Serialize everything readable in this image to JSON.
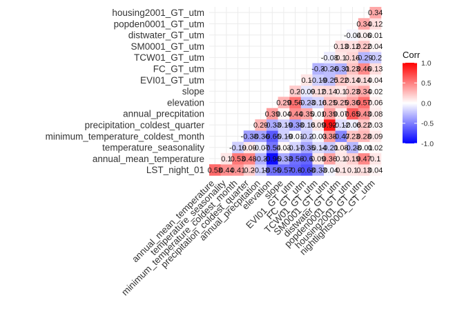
{
  "chart_data": {
    "type": "heatmap",
    "title": "",
    "xlabel": "",
    "ylabel": "",
    "variables": [
      "LST_night_01",
      "annual_mean_temperature",
      "temperature_seasonality",
      "minimum_temperature_coldest_month",
      "precipitation_coldest_quarter",
      "annual_precpitation",
      "elevation",
      "slope",
      "EVI01_GT_utm",
      "FC_GT_utm",
      "TCW01_GT_utm",
      "SM0001_GT_utm",
      "distwater_GT_utm",
      "popden0001_GT_utm",
      "housing2001_GT_utm",
      "nightlights0001_GT_utm"
    ],
    "x_labels": [
      "annual_mean_temperature",
      "temperature_seasonality",
      "minimum_temperature_coldest_month",
      "precipitation_coldest_quarter",
      "annual_precpitation",
      "elevation",
      "slope",
      "EVI01_GT_utm",
      "FC_GT_utm",
      "TCW01_GT_utm",
      "SM0001_GT_utm",
      "distwater_GT_utm",
      "popden0001_GT_utm",
      "housing2001_GT_utm",
      "nightlights0001_GT_utm"
    ],
    "y_labels": [
      "LST_night_01",
      "annual_mean_temperature",
      "temperature_seasonality",
      "minimum_temperature_coldest_month",
      "precipitation_coldest_quarter",
      "annual_precpitation",
      "elevation",
      "slope",
      "EVI01_GT_utm",
      "FC_GT_utm",
      "TCW01_GT_utm",
      "SM0001_GT_utm",
      "distwater_GT_utm",
      "popden0001_GT_utm",
      "housing2001_GT_utm"
    ],
    "rows": [
      [
        0.58,
        0.44,
        0.41,
        0.2,
        -0.18,
        -0.55,
        -0.57,
        -0.6,
        -0.68,
        -0.33,
        -0.04,
        0.1,
        0.1,
        0.13,
        0.04
      ],
      [
        null,
        0.1,
        0.53,
        0.48,
        -0.3,
        -0.95,
        -0.33,
        -0.56,
        -0.6,
        0.09,
        0.36,
        0.1,
        0.19,
        0.47,
        0.1
      ],
      [
        null,
        null,
        -0.19,
        0.09,
        -0.07,
        -0.54,
        0.03,
        -0.17,
        -0.35,
        -0.14,
        -0.21,
        0.08,
        -0.28,
        -0.01,
        0.02
      ],
      [
        null,
        null,
        null,
        -0.38,
        -0.36,
        -0.65,
        -0.19,
        -0.01,
        -0.2,
        -0.03,
        0.38,
        -0.47,
        0.23,
        0.28,
        0.09
      ],
      [
        null,
        null,
        null,
        null,
        0.29,
        -0.33,
        -0.19,
        -0.38,
        -0.16,
        0.09,
        0.92,
        -0.12,
        -0.06,
        0.22,
        0.03
      ],
      [
        null,
        null,
        null,
        null,
        null,
        0.39,
        0.04,
        0.44,
        0.35,
        0.01,
        0.39,
        0.07,
        0.65,
        0.43,
        0.08
      ],
      [
        null,
        null,
        null,
        null,
        null,
        null,
        0.29,
        0.56,
        -0.23,
        -0.16,
        0.25,
        0.25,
        0.36,
        0.57,
        0.06
      ],
      [
        null,
        null,
        null,
        null,
        null,
        null,
        null,
        0.2,
        -0.09,
        0.12,
        0.14,
        0.1,
        0.23,
        0.34,
        0.02
      ],
      [
        null,
        null,
        null,
        null,
        null,
        null,
        null,
        null,
        0.1,
        -0.19,
        -0.25,
        0.22,
        0.14,
        0.14,
        0.04
      ],
      [
        null,
        null,
        null,
        null,
        null,
        null,
        null,
        null,
        null,
        -0.3,
        -0.26,
        -0.31,
        0.23,
        0.46,
        0.13
      ],
      [
        null,
        null,
        null,
        null,
        null,
        null,
        null,
        null,
        null,
        null,
        -0.08,
        0.1,
        0.16,
        -0.29,
        -0.2
      ],
      [
        null,
        null,
        null,
        null,
        null,
        null,
        null,
        null,
        null,
        null,
        null,
        0.13,
        0.12,
        0.22,
        0.04
      ],
      [
        null,
        null,
        null,
        null,
        null,
        null,
        null,
        null,
        null,
        null,
        null,
        null,
        -0.04,
        0.06,
        0.01
      ],
      [
        null,
        null,
        null,
        null,
        null,
        null,
        null,
        null,
        null,
        null,
        null,
        null,
        null,
        0.34,
        0.12
      ],
      [
        null,
        null,
        null,
        null,
        null,
        null,
        null,
        null,
        null,
        null,
        null,
        null,
        null,
        null,
        0.34
      ]
    ],
    "color_scale": {
      "low": "#0000ff",
      "mid": "#ffffff",
      "high": "#ff0000",
      "limits": [
        -1.0,
        1.0
      ]
    },
    "legend": {
      "title": "Corr",
      "position": "right",
      "ticks": [
        "1.0",
        "0.5",
        "0.0",
        "-0.5",
        "-1.0"
      ]
    },
    "grid": true
  }
}
